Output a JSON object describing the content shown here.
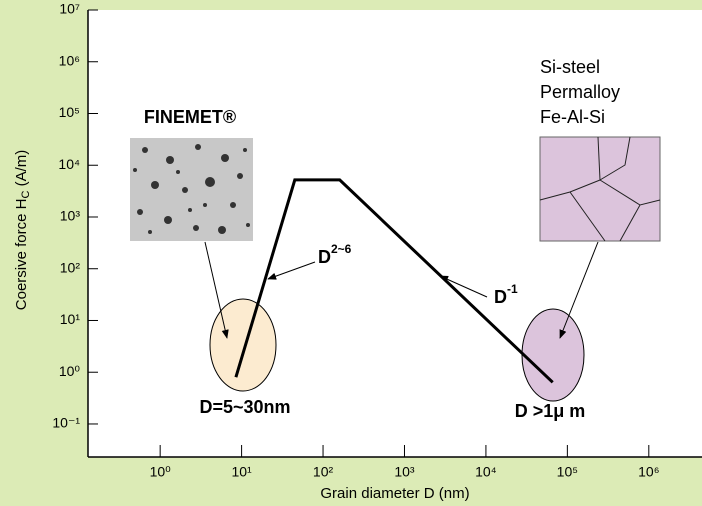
{
  "chart_data": {
    "type": "line",
    "log_x": true,
    "log_y": true,
    "xlabel": "Grain diameter  D (nm)",
    "ylabel": {
      "main": "Coersive force H",
      "sub": "C",
      "unit": " (A/m)"
    },
    "xlim": [
      0.13,
      4500000
    ],
    "ylim": [
      0.023,
      10000000
    ],
    "xticks": [
      {
        "value": 1,
        "label": "10⁰"
      },
      {
        "value": 10,
        "label": "10¹"
      },
      {
        "value": 100,
        "label": "10²"
      },
      {
        "value": 1000,
        "label": "10³"
      },
      {
        "value": 10000,
        "label": "10⁴"
      },
      {
        "value": 100000,
        "label": "10⁵"
      },
      {
        "value": 1000000,
        "label": "10⁶"
      }
    ],
    "yticks": [
      {
        "value": 0.1,
        "label": "10⁻¹"
      },
      {
        "value": 1,
        "label": "10⁰"
      },
      {
        "value": 10,
        "label": "10¹"
      },
      {
        "value": 100,
        "label": "10²"
      },
      {
        "value": 1000,
        "label": "10³"
      },
      {
        "value": 10000,
        "label": "10⁴"
      },
      {
        "value": 100000,
        "label": "10⁵"
      },
      {
        "value": 1000000,
        "label": "10⁶"
      },
      {
        "value": 10000000,
        "label": "10⁷"
      }
    ],
    "grid": false,
    "color": "#000000",
    "x": [
      8.5,
      45,
      160,
      66000
    ],
    "values": [
      0.8,
      5200,
      5200,
      0.64
    ],
    "annotations": {
      "finemet": "FINEMET®",
      "materials": [
        "Si-steel",
        "Permalloy",
        "Fe-Al-Si"
      ],
      "small_size": "D=5~30nm",
      "large_size": "D >1μ m",
      "slope_up": {
        "text": "D",
        "sup": "2~6"
      },
      "slope_down": {
        "text": "D",
        "sup": "-1"
      }
    }
  }
}
